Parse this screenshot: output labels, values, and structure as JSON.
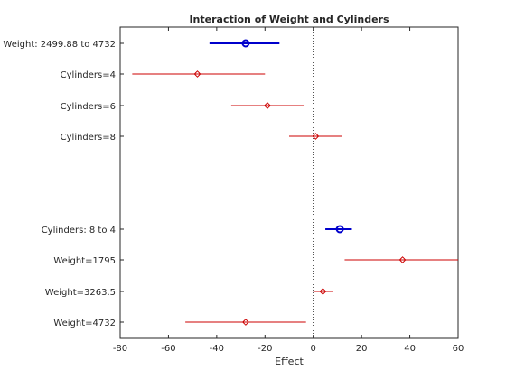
{
  "chart_data": {
    "type": "interaction-effects",
    "title": "Interaction of Weight and Cylinders",
    "xlabel": "Effect",
    "ylabel": "",
    "xlim": [
      -80,
      60
    ],
    "xticks": [
      -80,
      -60,
      -40,
      -20,
      0,
      20,
      40,
      60
    ],
    "grid": false,
    "reference_line_x": 0,
    "colors": {
      "main": "#0000cc",
      "conditional": "#cc0000",
      "refline": "#262626"
    },
    "rows": [
      {
        "label": "Weight: 2499.88 to 4732",
        "effect": -28,
        "ci": [
          -43,
          -14
        ],
        "kind": "main",
        "marker": "circle"
      },
      {
        "label": "Cylinders=4",
        "effect": -48,
        "ci": [
          -75,
          -20
        ],
        "kind": "conditional",
        "marker": "diamond"
      },
      {
        "label": "Cylinders=6",
        "effect": -19,
        "ci": [
          -34,
          -4
        ],
        "kind": "conditional",
        "marker": "diamond"
      },
      {
        "label": "Cylinders=8",
        "effect": 1,
        "ci": [
          -10,
          12
        ],
        "kind": "conditional",
        "marker": "diamond"
      },
      {
        "label": "Cylinders: 8 to 4",
        "effect": 11,
        "ci": [
          5,
          16
        ],
        "kind": "main",
        "marker": "circle"
      },
      {
        "label": "Weight=1795",
        "effect": 37,
        "ci": [
          13,
          60
        ],
        "kind": "conditional",
        "marker": "diamond"
      },
      {
        "label": "Weight=3263.5",
        "effect": 4,
        "ci": [
          0,
          8
        ],
        "kind": "conditional",
        "marker": "diamond"
      },
      {
        "label": "Weight=4732",
        "effect": -28,
        "ci": [
          -53,
          -3
        ],
        "kind": "conditional",
        "marker": "diamond"
      }
    ]
  }
}
